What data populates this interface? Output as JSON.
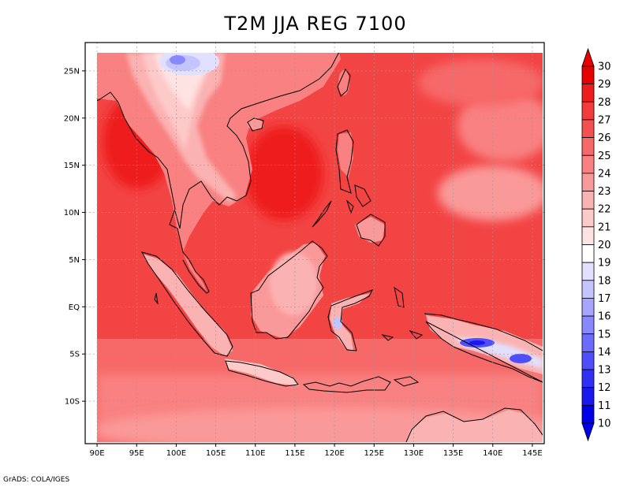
{
  "title": "T2M JJA REG 7100",
  "credit": "GrADS: COLA/IGES",
  "map": {
    "lon_ticks": [
      "90E",
      "95E",
      "100E",
      "105E",
      "110E",
      "115E",
      "120E",
      "125E",
      "130E",
      "135E",
      "140E",
      "145E"
    ],
    "lat_ticks": [
      "25N",
      "20N",
      "15N",
      "10N",
      "5N",
      "EQ",
      "5S",
      "10S"
    ],
    "lon_values": [
      90,
      95,
      100,
      105,
      110,
      115,
      120,
      125,
      130,
      135,
      140,
      145
    ],
    "lat_values": [
      25,
      20,
      15,
      10,
      5,
      0,
      -5,
      -10
    ],
    "lon_range": [
      88.5,
      146.5
    ],
    "lat_range": [
      -14.5,
      28
    ],
    "data_lon_range": [
      90,
      146.5
    ],
    "data_lat_range": [
      -14.5,
      27
    ],
    "grid": true
  },
  "colorbar": {
    "levels": [
      "30",
      "29",
      "28",
      "27",
      "26",
      "25",
      "24",
      "23",
      "22",
      "21",
      "20",
      "19",
      "18",
      "17",
      "16",
      "15",
      "14",
      "13",
      "12",
      "11",
      "10"
    ],
    "colors": [
      "#e60000",
      "#ee1d1d",
      "#f23b3b",
      "#f55050",
      "#f76868",
      "#f98181",
      "#fa9999",
      "#fbb2b2",
      "#fdcaca",
      "#fee3e3",
      "#ffffff",
      "#e1e1ff",
      "#c4c4ff",
      "#a6a6ff",
      "#8989ff",
      "#6b6bff",
      "#4e4efa",
      "#3030f5",
      "#1818ef",
      "#0000e8"
    ],
    "top_arrow_color": "#e60000",
    "bottom_arrow_color": "#0000e8"
  },
  "colors": {
    "sea_base": "#f34444",
    "land_warm": "#f76868",
    "highland_cool": "#fee3e3",
    "cold_core": "#6b6bff"
  }
}
